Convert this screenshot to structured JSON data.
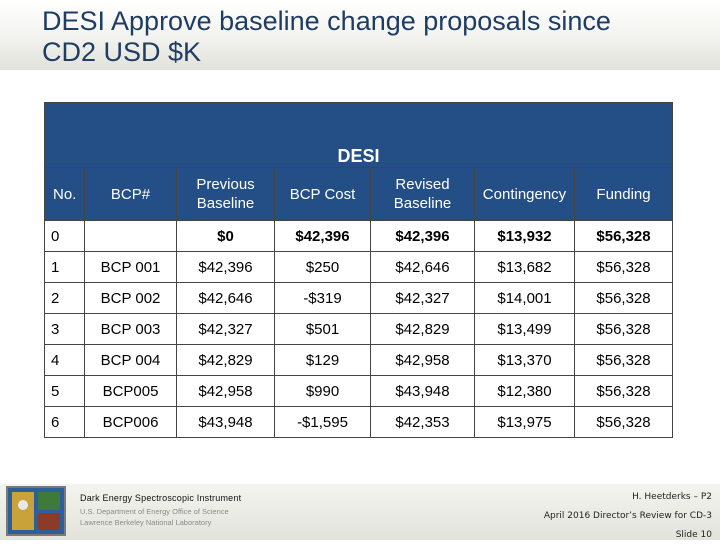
{
  "slide": {
    "title_line1": "DESI Approve baseline change proposals since",
    "title_line2": "CD2 USD $K"
  },
  "table": {
    "caption": "DESI",
    "headers": {
      "no": "No.",
      "bcp": "BCP#",
      "prev_line1": "Previous",
      "prev_line2": "Baseline",
      "cost": "BCP Cost",
      "rev_line1": "Revised",
      "rev_line2": "Baseline",
      "contingency": "Contingency",
      "funding": "Funding"
    },
    "rows": [
      {
        "no": "0",
        "bcp": "",
        "previous": "$0",
        "cost": "$42,396",
        "revised": "$42,396",
        "contingency": "$13,932",
        "funding": "$56,328"
      },
      {
        "no": "1",
        "bcp": "BCP 001",
        "previous": "$42,396",
        "cost": "$250",
        "revised": "$42,646",
        "contingency": "$13,682",
        "funding": "$56,328"
      },
      {
        "no": "2",
        "bcp": "BCP 002",
        "previous": "$42,646",
        "cost": "-$319",
        "revised": "$42,327",
        "contingency": "$14,001",
        "funding": "$56,328"
      },
      {
        "no": "3",
        "bcp": "BCP 003",
        "previous": "$42,327",
        "cost": "$501",
        "revised": "$42,829",
        "contingency": "$13,499",
        "funding": "$56,328"
      },
      {
        "no": "4",
        "bcp": "BCP 004",
        "previous": "$42,829",
        "cost": "$129",
        "revised": "$42,958",
        "contingency": "$13,370",
        "funding": "$56,328"
      },
      {
        "no": "5",
        "bcp": "BCP005",
        "previous": "$42,958",
        "cost": "$990",
        "revised": "$43,948",
        "contingency": "$12,380",
        "funding": "$56,328"
      },
      {
        "no": "6",
        "bcp": "BCP006",
        "previous": "$43,948",
        "cost": "-$1,595",
        "revised": "$42,353",
        "contingency": "$13,975",
        "funding": "$56,328"
      }
    ]
  },
  "footer": {
    "institution": "Dark Energy Spectroscopic Instrument",
    "doe": "U.S. Department of Energy Office of Science",
    "lab": "Lawrence Berkeley National Laboratory",
    "author": "H. Heetderks – P2",
    "review": "April 2016 Director’s Review for CD-3",
    "slide_number": "Slide 10"
  },
  "icons": {
    "logo": "desi-logo-icon"
  },
  "colors": {
    "header_bg": "#244f86",
    "title_text": "#1f3c64"
  }
}
